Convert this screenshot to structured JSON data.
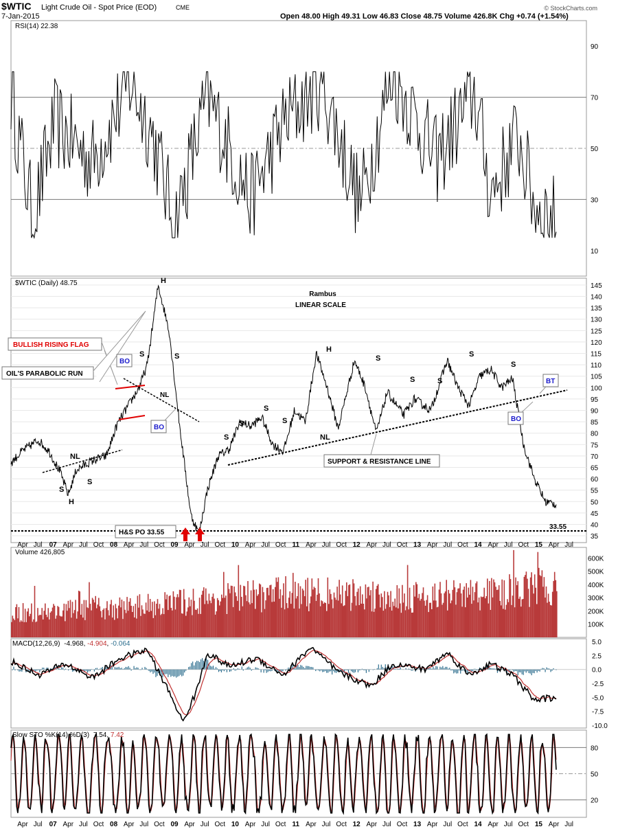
{
  "header": {
    "symbol": "$WTIC",
    "name": "Light Crude Oil - Spot Price (EOD)",
    "exchange": "CME",
    "date": "7-Jan-2015",
    "ohlc": "Open 48.00  High 49.31  Low 46.83  Close 48.75  Volume 426.8K  Chg +0.74 (+1.54%)",
    "watermark": "© StockCharts.com"
  },
  "x_axis": {
    "labels": [
      "Apr",
      "Jul",
      "07",
      "Apr",
      "Jul",
      "Oct",
      "08",
      "Apr",
      "Jul",
      "Oct",
      "09",
      "Apr",
      "Jul",
      "Oct",
      "10",
      "Apr",
      "Jul",
      "Oct",
      "11",
      "Apr",
      "Jul",
      "Oct",
      "12",
      "Apr",
      "Jul",
      "Oct",
      "13",
      "Apr",
      "Jul",
      "Oct",
      "14",
      "Apr",
      "Jul",
      "Oct",
      "15",
      "Apr",
      "Jul"
    ],
    "bold_labels": [
      "07",
      "08",
      "09",
      "10",
      "11",
      "12",
      "13",
      "14",
      "15"
    ]
  },
  "colors": {
    "price": "#000000",
    "volume": "#b83a3a",
    "macd_signal": "#c03030",
    "macd_hist": "#2d6e8e",
    "accent_red": "#e00000",
    "label_blue": "#1a1acc",
    "grid": "#bfbfbf"
  },
  "chart_data": [
    {
      "type": "line",
      "panel": "rsi",
      "title": "RSI(14) 22.38",
      "y_ticks": [
        10,
        30,
        50,
        70,
        90
      ],
      "ylim": [
        0,
        100
      ],
      "reference_lines": [
        30,
        50,
        70
      ],
      "keypoints": [
        [
          0,
          72
        ],
        [
          0.04,
          22
        ],
        [
          0.08,
          60
        ],
        [
          0.15,
          45
        ],
        [
          0.22,
          76
        ],
        [
          0.26,
          55
        ],
        [
          0.3,
          20
        ],
        [
          0.36,
          70
        ],
        [
          0.44,
          30
        ],
        [
          0.5,
          60
        ],
        [
          0.57,
          76
        ],
        [
          0.64,
          28
        ],
        [
          0.7,
          80
        ],
        [
          0.78,
          45
        ],
        [
          0.85,
          72
        ],
        [
          0.88,
          32
        ],
        [
          0.93,
          55
        ],
        [
          0.96,
          28
        ],
        [
          1.0,
          22
        ]
      ]
    },
    {
      "type": "line",
      "panel": "price",
      "title": "$WTIC (Daily) 48.75",
      "y_ticks": [
        35,
        40,
        45,
        50,
        55,
        60,
        65,
        70,
        75,
        80,
        85,
        90,
        95,
        100,
        105,
        110,
        115,
        120,
        125,
        130,
        135,
        140,
        145
      ],
      "ylim": [
        32,
        148
      ],
      "price_target": 33.55,
      "keypoints": [
        [
          0,
          67
        ],
        [
          0.02,
          72
        ],
        [
          0.05,
          77
        ],
        [
          0.07,
          72
        ],
        [
          0.09,
          63
        ],
        [
          0.105,
          53
        ],
        [
          0.12,
          64
        ],
        [
          0.15,
          68
        ],
        [
          0.175,
          70
        ],
        [
          0.195,
          84
        ],
        [
          0.215,
          92
        ],
        [
          0.235,
          100
        ],
        [
          0.25,
          110
        ],
        [
          0.27,
          145
        ],
        [
          0.29,
          125
        ],
        [
          0.31,
          82
        ],
        [
          0.33,
          44
        ],
        [
          0.345,
          36
        ],
        [
          0.36,
          55
        ],
        [
          0.38,
          70
        ],
        [
          0.4,
          73
        ],
        [
          0.42,
          85
        ],
        [
          0.44,
          83
        ],
        [
          0.46,
          87
        ],
        [
          0.48,
          75
        ],
        [
          0.5,
          72
        ],
        [
          0.52,
          90
        ],
        [
          0.54,
          85
        ],
        [
          0.56,
          115
        ],
        [
          0.58,
          100
        ],
        [
          0.6,
          82
        ],
        [
          0.63,
          112
        ],
        [
          0.65,
          100
        ],
        [
          0.67,
          80
        ],
        [
          0.69,
          98
        ],
        [
          0.72,
          88
        ],
        [
          0.74,
          95
        ],
        [
          0.77,
          90
        ],
        [
          0.8,
          112
        ],
        [
          0.82,
          100
        ],
        [
          0.84,
          92
        ],
        [
          0.86,
          105
        ],
        [
          0.88,
          108
        ],
        [
          0.9,
          100
        ],
        [
          0.92,
          104
        ],
        [
          0.94,
          75
        ],
        [
          0.96,
          60
        ],
        [
          0.98,
          50
        ],
        [
          1.0,
          48.75
        ]
      ]
    },
    {
      "type": "bar",
      "panel": "volume",
      "title": "Volume 426,805",
      "y_ticks": [
        "100K",
        "200K",
        "300K",
        "400K",
        "500K",
        "600K"
      ],
      "ylim": [
        0,
        680
      ],
      "keypoints": [
        [
          0,
          190
        ],
        [
          0.1,
          220
        ],
        [
          0.2,
          240
        ],
        [
          0.3,
          280
        ],
        [
          0.4,
          320
        ],
        [
          0.5,
          360
        ],
        [
          0.6,
          350
        ],
        [
          0.7,
          330
        ],
        [
          0.8,
          340
        ],
        [
          0.9,
          360
        ],
        [
          1.0,
          427
        ]
      ]
    },
    {
      "type": "line",
      "panel": "macd",
      "title_prefix": "MACD(12,26,9)",
      "macd_value": "-4.968",
      "signal_value": "-4.904",
      "hist_value": "-0.064",
      "y_ticks": [
        "5.0",
        "2.5",
        "0.0",
        "-2.5",
        "-5.0",
        "-7.5",
        "-10.0"
      ],
      "ylim": [
        -10.5,
        5.5
      ],
      "keypoints": [
        [
          0,
          1.5
        ],
        [
          0.05,
          -1
        ],
        [
          0.1,
          1
        ],
        [
          0.15,
          -1.5
        ],
        [
          0.2,
          2
        ],
        [
          0.25,
          3.5
        ],
        [
          0.3,
          -6
        ],
        [
          0.315,
          -9.5
        ],
        [
          0.34,
          -4
        ],
        [
          0.36,
          3
        ],
        [
          0.4,
          0.5
        ],
        [
          0.45,
          2
        ],
        [
          0.5,
          -1
        ],
        [
          0.55,
          4
        ],
        [
          0.6,
          -0.5
        ],
        [
          0.66,
          -3
        ],
        [
          0.7,
          1
        ],
        [
          0.76,
          0
        ],
        [
          0.8,
          3
        ],
        [
          0.84,
          -1
        ],
        [
          0.88,
          1
        ],
        [
          0.92,
          -1
        ],
        [
          0.96,
          -5.5
        ],
        [
          1.0,
          -4.97
        ]
      ]
    },
    {
      "type": "line",
      "panel": "stochastic",
      "title_prefix": "Slow STO %K(14) %D(3)",
      "k_value": "7.54",
      "d_value": "7.42",
      "y_ticks": [
        20,
        50,
        80
      ],
      "ylim": [
        0,
        100
      ],
      "reference_lines": [
        20,
        50,
        80
      ]
    }
  ],
  "annotations": {
    "rambus": "Rambus",
    "linear_scale": "LINEAR SCALE",
    "bullish_rising_flag": "BULLISH RISING FLAG",
    "parabolic_run": "OIL'S PARABOLIC RUN",
    "support_resistance": "SUPPORT & RESISTANCE LINE",
    "hs_po": "H&S PO 33.55",
    "po_value": "33.55",
    "bo": "BO",
    "bt": "BT",
    "nl": "NL",
    "s": "S",
    "h": "H"
  }
}
